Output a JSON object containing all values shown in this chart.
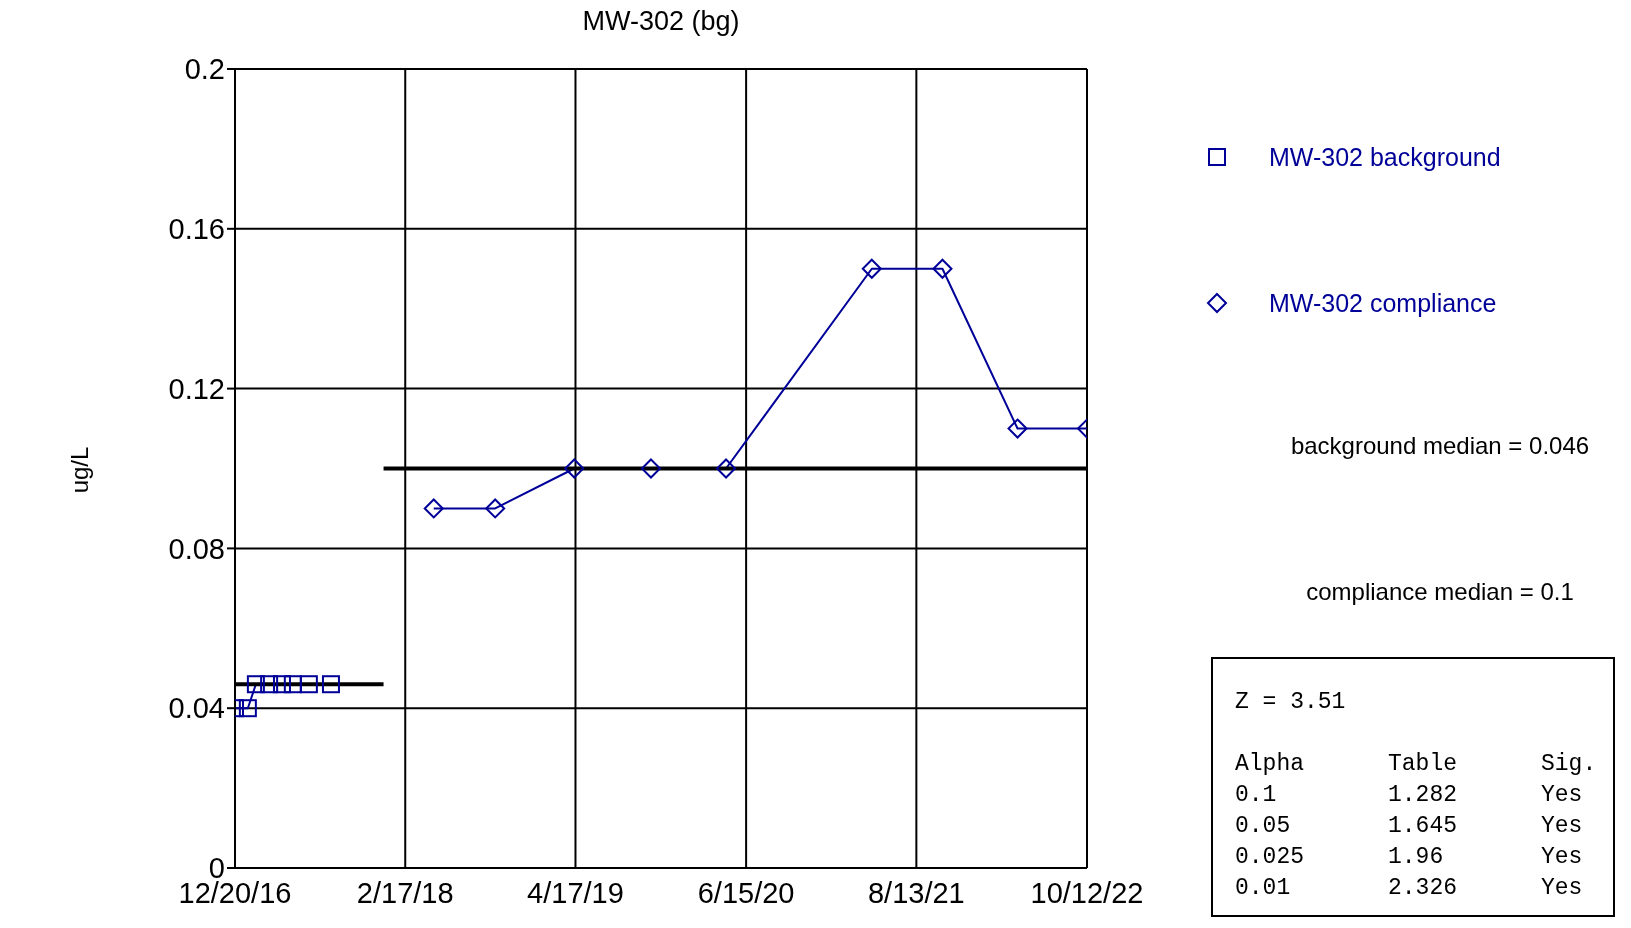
{
  "chart_data": {
    "type": "line",
    "title": "MW-302 (bg)",
    "ylabel": "ug/L",
    "xlim": [
      "2016-12-20",
      "2022-10-12"
    ],
    "xticks": [
      {
        "value": "2016-12-20",
        "label": "12/20/16"
      },
      {
        "value": "2018-02-17",
        "label": "2/17/18"
      },
      {
        "value": "2019-04-17",
        "label": "4/17/19"
      },
      {
        "value": "2020-06-15",
        "label": "6/15/20"
      },
      {
        "value": "2021-08-13",
        "label": "8/13/21"
      },
      {
        "value": "2022-10-12",
        "label": "10/12/22"
      }
    ],
    "ylim": [
      0,
      0.2
    ],
    "yticks": [
      0,
      0.04,
      0.08,
      0.12,
      0.16,
      0.2
    ],
    "grid": true,
    "legend": "right",
    "series": [
      {
        "name": "MW-302 background",
        "color": "#000099",
        "marker": "square",
        "x": [
          "2016-12-20",
          "2017-01-21",
          "2017-02-10",
          "2017-03-15",
          "2017-04-16",
          "2017-05-13",
          "2017-06-22",
          "2017-08-16"
        ],
        "values": [
          0.04,
          0.04,
          0.046,
          0.046,
          0.046,
          0.046,
          0.046,
          0.046
        ]
      },
      {
        "name": "MW-302 compliance",
        "color": "#000099",
        "marker": "diamond",
        "x": [
          "2018-04-29",
          "2018-09-29",
          "2019-04-14",
          "2019-10-22",
          "2020-04-26",
          "2021-04-24",
          "2021-10-17",
          "2022-04-22",
          "2022-10-12"
        ],
        "values": [
          0.09,
          0.09,
          0.1,
          0.1,
          0.1,
          0.15,
          0.15,
          0.11,
          0.11
        ]
      },
      {
        "type": "line",
        "color": "#000000",
        "marker": "none",
        "x": [
          "2016-12-20",
          "2017-12-25"
        ],
        "values": [
          0.046,
          0.046
        ]
      },
      {
        "type": "line",
        "color": "#000000",
        "marker": "none",
        "x": [
          "2017-12-25",
          "2022-10-12"
        ],
        "values": [
          0.1,
          0.1
        ]
      }
    ],
    "annotations": [
      "background median = 0.046",
      "compliance median = 0.1",
      "Z = 3.51",
      "Alpha",
      "Table",
      "Sig.",
      "0.1",
      "1.282",
      "Yes",
      "0.05",
      "1.645",
      "Yes",
      "0.025",
      "1.96",
      "Yes",
      "0.01",
      "2.326",
      "Yes"
    ]
  }
}
